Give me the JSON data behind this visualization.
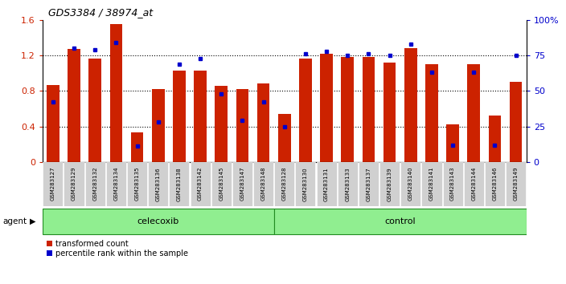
{
  "title": "GDS3384 / 38974_at",
  "categories": [
    "GSM283127",
    "GSM283129",
    "GSM283132",
    "GSM283134",
    "GSM283135",
    "GSM283136",
    "GSM283138",
    "GSM283142",
    "GSM283145",
    "GSM283147",
    "GSM283148",
    "GSM283128",
    "GSM283130",
    "GSM283131",
    "GSM283133",
    "GSM283137",
    "GSM283139",
    "GSM283140",
    "GSM283141",
    "GSM283143",
    "GSM283144",
    "GSM283146",
    "GSM283149"
  ],
  "bar_values": [
    0.87,
    1.27,
    1.16,
    1.55,
    0.33,
    0.82,
    1.03,
    1.03,
    0.86,
    0.82,
    0.88,
    0.54,
    1.16,
    1.22,
    1.18,
    1.18,
    1.12,
    1.28,
    1.1,
    0.42,
    1.1,
    0.52,
    0.9
  ],
  "percentile_values_pct": [
    42,
    80,
    79,
    84,
    11,
    28,
    69,
    73,
    48,
    29,
    42,
    25,
    76,
    78,
    75,
    76,
    75,
    83,
    63,
    12,
    63,
    12,
    75
  ],
  "bar_color": "#CC2200",
  "dot_color": "#0000CC",
  "ylim_left": [
    0,
    1.6
  ],
  "ylim_right": [
    0,
    100
  ],
  "yticks_left": [
    0,
    0.4,
    0.8,
    1.2,
    1.6
  ],
  "yticks_right": [
    0,
    25,
    50,
    75,
    100
  ],
  "group1_label": "celecoxib",
  "group2_label": "control",
  "group1_count": 11,
  "group2_count": 12,
  "agent_label": "agent",
  "legend1": "transformed count",
  "legend2": "percentile rank within the sample",
  "background_color": "#ffffff",
  "cell_bg": "#d0d0d0",
  "group_color": "#90EE90",
  "group_border": "#228B22"
}
